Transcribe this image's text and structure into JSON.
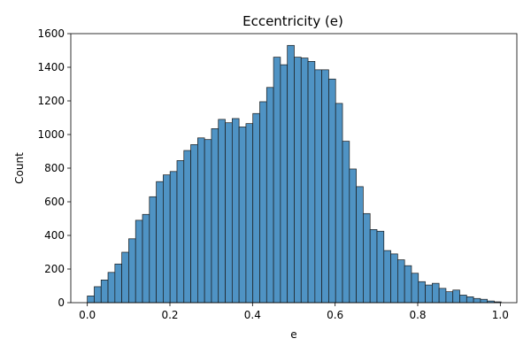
{
  "chart_data": {
    "type": "bar",
    "title": "Eccentricity (e)",
    "xlabel": "e",
    "ylabel": "Count",
    "xlim": [
      -0.04,
      1.04
    ],
    "ylim": [
      0,
      1600
    ],
    "xticks": [
      "0.0",
      "0.2",
      "0.4",
      "0.6",
      "0.8",
      "1.0"
    ],
    "yticks": [
      "0",
      "200",
      "400",
      "600",
      "800",
      "1000",
      "1200",
      "1400",
      "1600"
    ],
    "grid": false,
    "bin_width": 0.0167,
    "bin_start": 0.0,
    "bar_color": "#4f93c4",
    "edge_color": "#1a1a1a",
    "values": [
      40,
      95,
      135,
      180,
      230,
      300,
      380,
      490,
      525,
      630,
      720,
      760,
      780,
      845,
      905,
      940,
      980,
      970,
      1035,
      1090,
      1070,
      1095,
      1045,
      1065,
      1125,
      1195,
      1280,
      1460,
      1415,
      1530,
      1460,
      1455,
      1435,
      1385,
      1385,
      1330,
      1185,
      960,
      795,
      690,
      530,
      435,
      425,
      310,
      290,
      255,
      220,
      175,
      125,
      105,
      115,
      85,
      65,
      75,
      45,
      35,
      25,
      20,
      10,
      5
    ]
  }
}
